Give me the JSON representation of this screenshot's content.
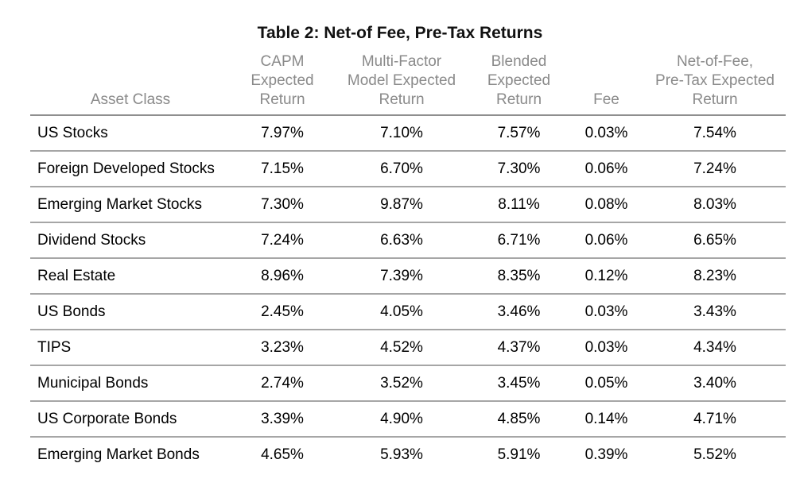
{
  "title": "Table 2: Net-of Fee, Pre-Tax Returns",
  "table": {
    "columns": [
      {
        "id": "asset-class",
        "label": "Asset Class"
      },
      {
        "id": "capm-expected-return",
        "label": "CAPM\nExpected\nReturn"
      },
      {
        "id": "multi-factor-model-expected-return",
        "label": "Multi-Factor\nModel Expected\nReturn"
      },
      {
        "id": "blended-expected-return",
        "label": "Blended\nExpected\nReturn"
      },
      {
        "id": "fee",
        "label": "Fee"
      },
      {
        "id": "net-of-fee-pre-tax-expected-return",
        "label": "Net-of-Fee,\nPre-Tax Expected\nReturn"
      }
    ],
    "rows": [
      [
        "US Stocks",
        "7.97%",
        "7.10%",
        "7.57%",
        "0.03%",
        "7.54%"
      ],
      [
        "Foreign Developed Stocks",
        "7.15%",
        "6.70%",
        "7.30%",
        "0.06%",
        "7.24%"
      ],
      [
        "Emerging Market Stocks",
        "7.30%",
        "9.87%",
        "8.11%",
        "0.08%",
        "8.03%"
      ],
      [
        "Dividend Stocks",
        "7.24%",
        "6.63%",
        "6.71%",
        "0.06%",
        "6.65%"
      ],
      [
        "Real Estate",
        "8.96%",
        "7.39%",
        "8.35%",
        "0.12%",
        "8.23%"
      ],
      [
        "US Bonds",
        "2.45%",
        "4.05%",
        "3.46%",
        "0.03%",
        "3.43%"
      ],
      [
        "TIPS",
        "3.23%",
        "4.52%",
        "4.37%",
        "0.03%",
        "4.34%"
      ],
      [
        "Municipal Bonds",
        "2.74%",
        "3.52%",
        "3.45%",
        "0.05%",
        "3.40%"
      ],
      [
        "US Corporate Bonds",
        "3.39%",
        "4.90%",
        "4.85%",
        "0.14%",
        "4.71%"
      ],
      [
        "Emerging Market Bonds",
        "4.65%",
        "5.93%",
        "5.91%",
        "0.39%",
        "5.52%"
      ]
    ]
  },
  "colors": {
    "background": "#ffffff",
    "title_text": "#111111",
    "header_text": "#8a8a8a",
    "body_text": "#000000",
    "header_rule": "#8f8f8f",
    "row_rule": "#a6a6a6"
  }
}
